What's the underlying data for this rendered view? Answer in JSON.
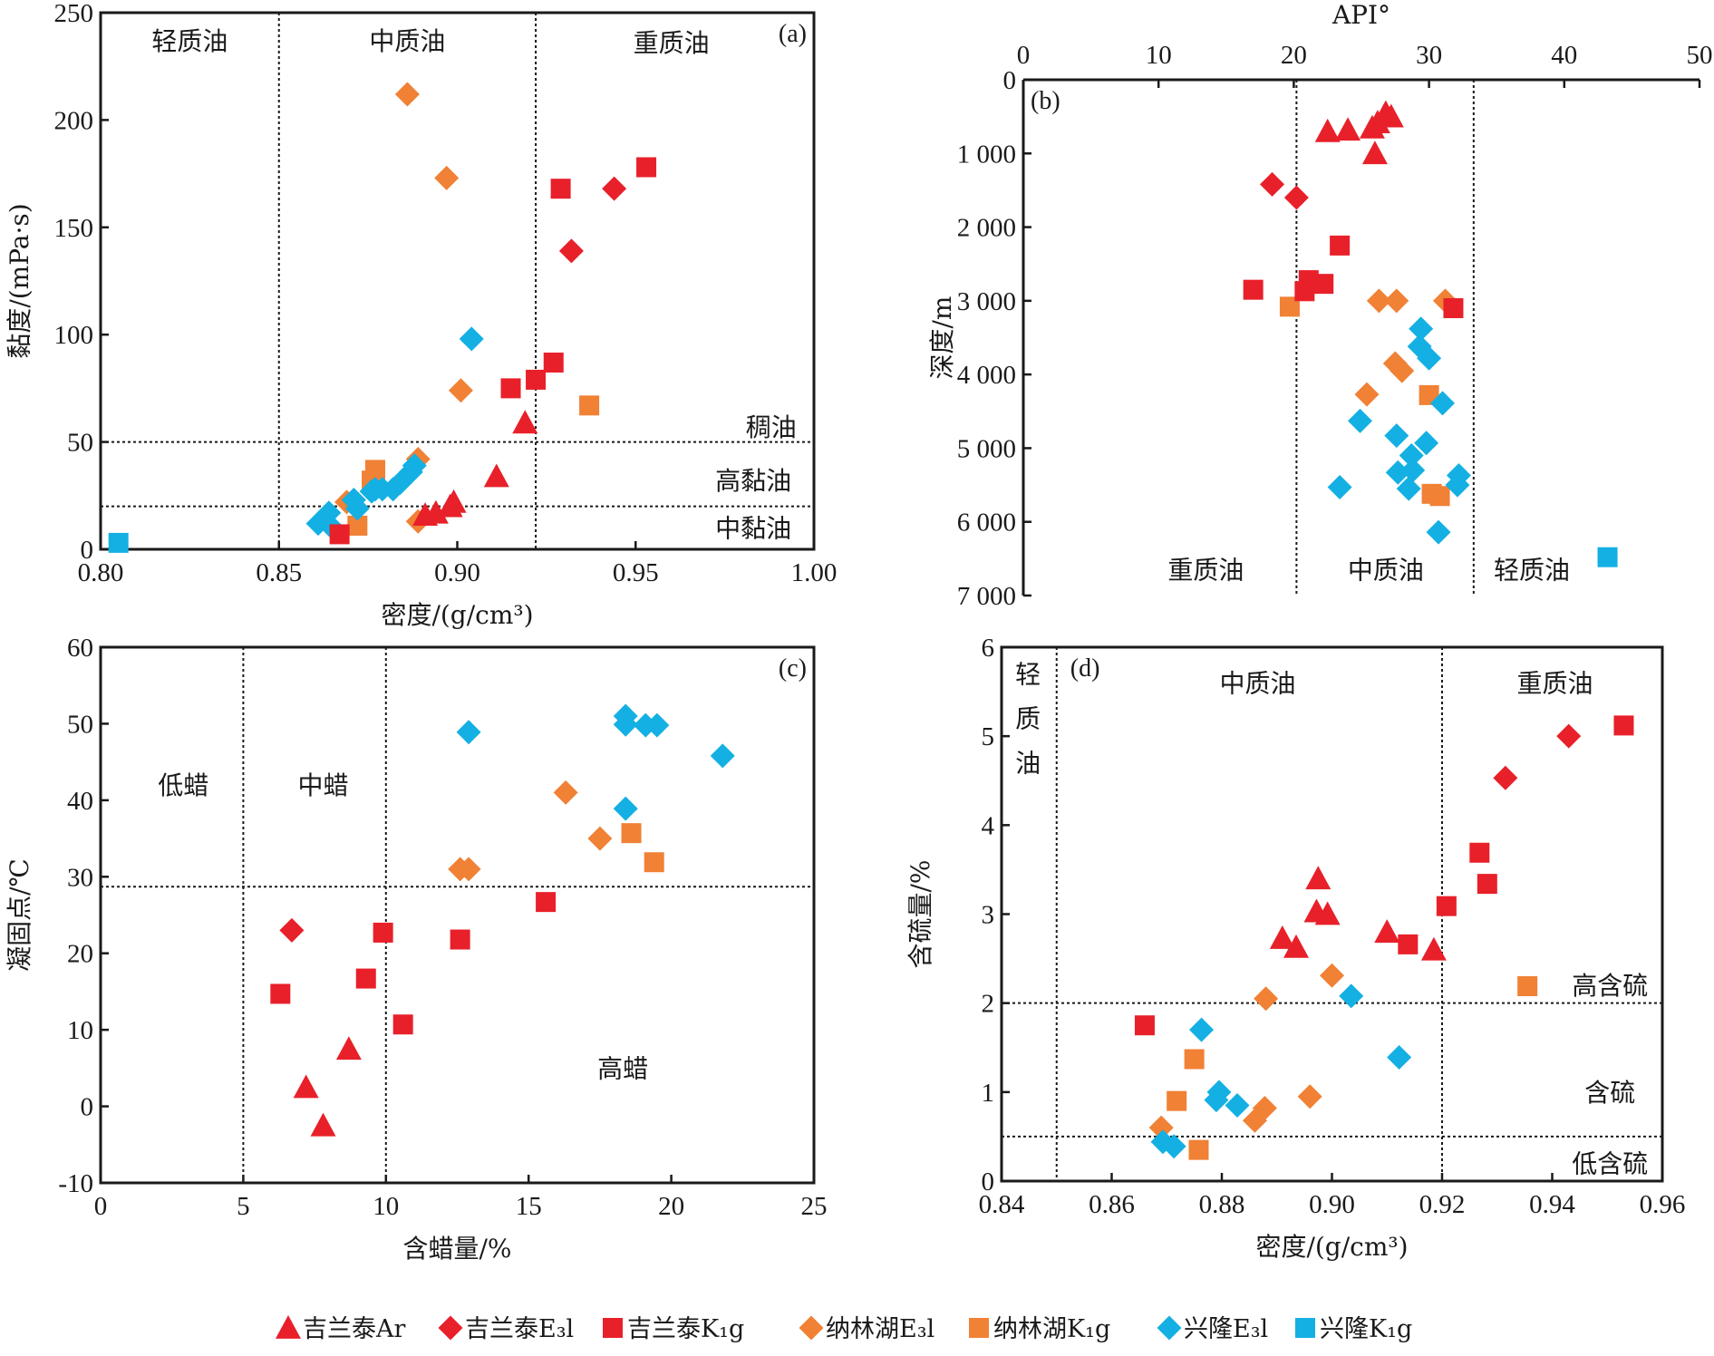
{
  "legend": {
    "items": [
      {
        "key": "jlt_ar",
        "label": "吉兰泰Ar",
        "color": "#e8202a",
        "marker": "triangle"
      },
      {
        "key": "jlt_e3l",
        "label": "吉兰泰E₃l",
        "color": "#e8202a",
        "marker": "diamond"
      },
      {
        "key": "jlt_k1g",
        "label": "吉兰泰K₁g",
        "color": "#e8202a",
        "marker": "square"
      },
      {
        "key": "nlh_e3l",
        "label": "纳林湖E₃l",
        "color": "#f08135",
        "marker": "diamond"
      },
      {
        "key": "nlh_k1g",
        "label": "纳林湖K₁g",
        "color": "#f08135",
        "marker": "square"
      },
      {
        "key": "xl_e3l",
        "label": "兴隆E₃l",
        "color": "#14b0e3",
        "marker": "diamond"
      },
      {
        "key": "xl_k1g",
        "label": "兴隆K₁g",
        "color": "#14b0e3",
        "marker": "square"
      }
    ]
  },
  "chart_data": [
    {
      "id": "a",
      "type": "scatter",
      "panel_label": "(a)",
      "xlabel": "密度/(g/cm³)",
      "ylabel": "黏度/(mPa·s)",
      "xlim": [
        0.8,
        1.0
      ],
      "ylim": [
        0,
        250
      ],
      "xticks": [
        0.8,
        0.85,
        0.9,
        0.95,
        1.0
      ],
      "xtick_labels": [
        "0.80",
        "0.85",
        "0.90",
        "0.95",
        "1.00"
      ],
      "yticks": [
        0,
        50,
        100,
        150,
        200,
        250
      ],
      "ytick_labels": [
        "0",
        "50",
        "100",
        "150",
        "200",
        "250"
      ],
      "vlines": [
        0.85,
        0.922
      ],
      "hlines": [
        50,
        20
      ],
      "regions": [
        {
          "text": "轻质油",
          "x": 0.825,
          "y": 237
        },
        {
          "text": "中质油",
          "x": 0.886,
          "y": 237
        },
        {
          "text": "重质油",
          "x": 0.96,
          "y": 236
        },
        {
          "text": "稠油",
          "x": 0.988,
          "y": 57
        },
        {
          "text": "高黏油",
          "x": 0.983,
          "y": 32
        },
        {
          "text": "中黏油",
          "x": 0.983,
          "y": 10
        }
      ],
      "series": {
        "jlt_ar": [
          [
            0.919,
            59
          ],
          [
            0.911,
            34
          ],
          [
            0.899,
            22
          ],
          [
            0.898,
            20
          ],
          [
            0.894,
            17
          ],
          [
            0.891,
            16
          ]
        ],
        "jlt_e3l": [
          [
            0.944,
            168
          ],
          [
            0.932,
            139
          ]
        ],
        "jlt_k1g": [
          [
            0.953,
            178
          ],
          [
            0.929,
            168
          ],
          [
            0.927,
            87
          ],
          [
            0.922,
            79
          ],
          [
            0.915,
            75
          ],
          [
            0.867,
            7
          ]
        ],
        "nlh_e3l": [
          [
            0.886,
            212
          ],
          [
            0.897,
            173
          ],
          [
            0.901,
            74
          ],
          [
            0.889,
            42
          ],
          [
            0.889,
            13
          ],
          [
            0.869,
            22
          ]
        ],
        "nlh_k1g": [
          [
            0.937,
            67
          ],
          [
            0.877,
            37
          ],
          [
            0.876,
            32
          ],
          [
            0.872,
            11
          ]
        ],
        "xl_e3l": [
          [
            0.904,
            98
          ],
          [
            0.888,
            39
          ],
          [
            0.887,
            36
          ],
          [
            0.884,
            31
          ],
          [
            0.882,
            28
          ],
          [
            0.879,
            28
          ],
          [
            0.877,
            28
          ],
          [
            0.876,
            27
          ],
          [
            0.871,
            23
          ],
          [
            0.872,
            19
          ],
          [
            0.864,
            17
          ],
          [
            0.861,
            12
          ],
          [
            0.865,
            10
          ]
        ],
        "xl_k1g": [
          [
            0.805,
            3
          ]
        ]
      }
    },
    {
      "id": "b",
      "type": "scatter",
      "panel_label": "(b)",
      "xlabel": "API°",
      "ylabel": "深度/m",
      "xlim": [
        0,
        50
      ],
      "ylim": [
        0,
        7000
      ],
      "y_inverted": true,
      "x_axis_position": "top",
      "xticks": [
        0,
        10,
        20,
        30,
        40,
        50
      ],
      "xtick_labels": [
        "0",
        "10",
        "20",
        "30",
        "40",
        "50"
      ],
      "yticks": [
        0,
        1000,
        2000,
        3000,
        4000,
        5000,
        6000,
        7000
      ],
      "ytick_labels": [
        "0",
        "1 000",
        "2 000",
        "3 000",
        "4 000",
        "5 000",
        "6 000",
        "7 000"
      ],
      "vlines": [
        20.2,
        33.3
      ],
      "hlines": [],
      "regions": [
        {
          "text": "重质油",
          "x": 13.5,
          "y": 6650
        },
        {
          "text": "中质油",
          "x": 26.8,
          "y": 6650
        },
        {
          "text": "轻质油",
          "x": 37.6,
          "y": 6650
        }
      ],
      "series": {
        "jlt_ar": [
          [
            26.8,
            450
          ],
          [
            27.2,
            500
          ],
          [
            26.2,
            580
          ],
          [
            25.8,
            650
          ],
          [
            22.5,
            700
          ],
          [
            24.0,
            680
          ],
          [
            26.0,
            1000
          ]
        ],
        "jlt_e3l": [
          [
            18.4,
            1420
          ],
          [
            20.2,
            1600
          ]
        ],
        "jlt_k1g": [
          [
            23.4,
            2250
          ],
          [
            21.1,
            2720
          ],
          [
            22.2,
            2770
          ],
          [
            20.8,
            2870
          ],
          [
            17.0,
            2850
          ],
          [
            31.8,
            3100
          ]
        ],
        "nlh_e3l": [
          [
            26.3,
            3000
          ],
          [
            27.6,
            3000
          ],
          [
            31.2,
            3000
          ],
          [
            27.5,
            3850
          ],
          [
            28.0,
            3950
          ],
          [
            25.4,
            4270
          ]
        ],
        "nlh_k1g": [
          [
            19.7,
            3080
          ],
          [
            30.0,
            4280
          ],
          [
            30.2,
            5620
          ],
          [
            30.8,
            5650
          ]
        ],
        "xl_e3l": [
          [
            29.4,
            3380
          ],
          [
            29.3,
            3620
          ],
          [
            30.0,
            3780
          ],
          [
            31.0,
            4390
          ],
          [
            24.9,
            4630
          ],
          [
            27.6,
            4830
          ],
          [
            29.8,
            4930
          ],
          [
            28.7,
            5100
          ],
          [
            27.7,
            5330
          ],
          [
            28.8,
            5300
          ],
          [
            28.5,
            5550
          ],
          [
            32.2,
            5370
          ],
          [
            32.1,
            5500
          ],
          [
            23.4,
            5530
          ],
          [
            30.7,
            6140
          ]
        ],
        "xl_k1g": [
          [
            43.2,
            6480
          ]
        ]
      }
    },
    {
      "id": "c",
      "type": "scatter",
      "panel_label": "(c)",
      "xlabel": "含蜡量/%",
      "ylabel": "凝固点/℃",
      "xlim": [
        0,
        25
      ],
      "ylim": [
        -10,
        60
      ],
      "xticks": [
        0,
        5,
        10,
        15,
        20,
        25
      ],
      "xtick_labels": [
        "0",
        "5",
        "10",
        "15",
        "20",
        "25"
      ],
      "yticks": [
        -10,
        0,
        10,
        20,
        30,
        40,
        50,
        60
      ],
      "ytick_labels": [
        "-10",
        "0",
        "10",
        "20",
        "30",
        "40",
        "50",
        "60"
      ],
      "vlines": [
        5,
        10
      ],
      "hlines": [
        28.7
      ],
      "regions": [
        {
          "text": "低蜡",
          "x": 2.9,
          "y": 42
        },
        {
          "text": "中蜡",
          "x": 7.8,
          "y": 42
        },
        {
          "text": "高蜡",
          "x": 18.3,
          "y": 5
        }
      ],
      "series": {
        "jlt_ar": [
          [
            8.7,
            7.5
          ],
          [
            7.2,
            2.5
          ],
          [
            7.8,
            -2.5
          ]
        ],
        "jlt_e3l": [
          [
            6.7,
            23
          ]
        ],
        "jlt_k1g": [
          [
            6.3,
            14.7
          ],
          [
            9.3,
            16.7
          ],
          [
            9.9,
            22.7
          ],
          [
            10.6,
            10.7
          ],
          [
            12.6,
            21.8
          ],
          [
            15.6,
            26.7
          ]
        ],
        "nlh_e3l": [
          [
            16.3,
            41
          ],
          [
            17.5,
            35
          ],
          [
            12.6,
            31
          ],
          [
            12.9,
            31
          ]
        ],
        "nlh_k1g": [
          [
            18.6,
            35.7
          ],
          [
            19.4,
            31.9
          ]
        ],
        "xl_e3l": [
          [
            12.9,
            48.9
          ],
          [
            18.4,
            51
          ],
          [
            18.4,
            49.9
          ],
          [
            19.1,
            49.8
          ],
          [
            19.5,
            49.8
          ],
          [
            21.8,
            45.8
          ],
          [
            18.4,
            38.9
          ]
        ],
        "xl_k1g": []
      }
    },
    {
      "id": "d",
      "type": "scatter",
      "panel_label": "(d)",
      "xlabel": "密度/(g/cm³)",
      "ylabel": "含硫量/%",
      "xlim": [
        0.84,
        0.96
      ],
      "ylim": [
        0,
        6
      ],
      "xticks": [
        0.84,
        0.86,
        0.88,
        0.9,
        0.92,
        0.94,
        0.96
      ],
      "xtick_labels": [
        "0.84",
        "0.86",
        "0.88",
        "0.90",
        "0.92",
        "0.94",
        "0.96"
      ],
      "yticks": [
        0,
        1,
        2,
        3,
        4,
        5,
        6
      ],
      "ytick_labels": [
        "0",
        "1",
        "2",
        "3",
        "4",
        "5",
        "6"
      ],
      "vlines": [
        0.85,
        0.92
      ],
      "hlines": [
        2,
        0.5
      ],
      "regions": [
        {
          "text": "中质油",
          "x": 0.8865,
          "y": 5.6
        },
        {
          "text": "重质油",
          "x": 0.9405,
          "y": 5.6
        },
        {
          "text": "高含硫",
          "x": 0.9505,
          "y": 2.2
        },
        {
          "text": "含硫",
          "x": 0.9505,
          "y": 1.0
        },
        {
          "text": "低含硫",
          "x": 0.9505,
          "y": 0.2
        }
      ],
      "vertical_region": {
        "chars": [
          "轻",
          "质",
          "油"
        ],
        "x": 0.8448,
        "y": [
          5.7,
          5.2,
          4.7
        ]
      },
      "series": {
        "jlt_ar": [
          [
            0.8975,
            3.4
          ],
          [
            0.8972,
            3.03
          ],
          [
            0.8992,
            3.0
          ],
          [
            0.891,
            2.73
          ],
          [
            0.8935,
            2.63
          ],
          [
            0.91,
            2.8
          ],
          [
            0.9185,
            2.6
          ]
        ],
        "jlt_e3l": [
          [
            0.943,
            5.0
          ],
          [
            0.9315,
            4.53
          ]
        ],
        "jlt_k1g": [
          [
            0.953,
            5.12
          ],
          [
            0.9268,
            3.69
          ],
          [
            0.9282,
            3.34
          ],
          [
            0.9208,
            3.09
          ],
          [
            0.9138,
            2.66
          ],
          [
            0.866,
            1.75
          ]
        ],
        "nlh_e3l": [
          [
            0.9,
            2.31
          ],
          [
            0.888,
            2.05
          ],
          [
            0.896,
            0.95
          ],
          [
            0.8878,
            0.82
          ],
          [
            0.886,
            0.68
          ],
          [
            0.869,
            0.6
          ]
        ],
        "nlh_k1g": [
          [
            0.9355,
            2.19
          ],
          [
            0.875,
            1.37
          ],
          [
            0.8718,
            0.9
          ],
          [
            0.8758,
            0.35
          ]
        ],
        "xl_e3l": [
          [
            0.9035,
            2.08
          ],
          [
            0.8763,
            1.7
          ],
          [
            0.8795,
            1.0
          ],
          [
            0.879,
            0.91
          ],
          [
            0.8828,
            0.85
          ],
          [
            0.9122,
            1.39
          ],
          [
            0.8693,
            0.44
          ],
          [
            0.8713,
            0.39
          ]
        ],
        "xl_k1g": []
      }
    }
  ]
}
